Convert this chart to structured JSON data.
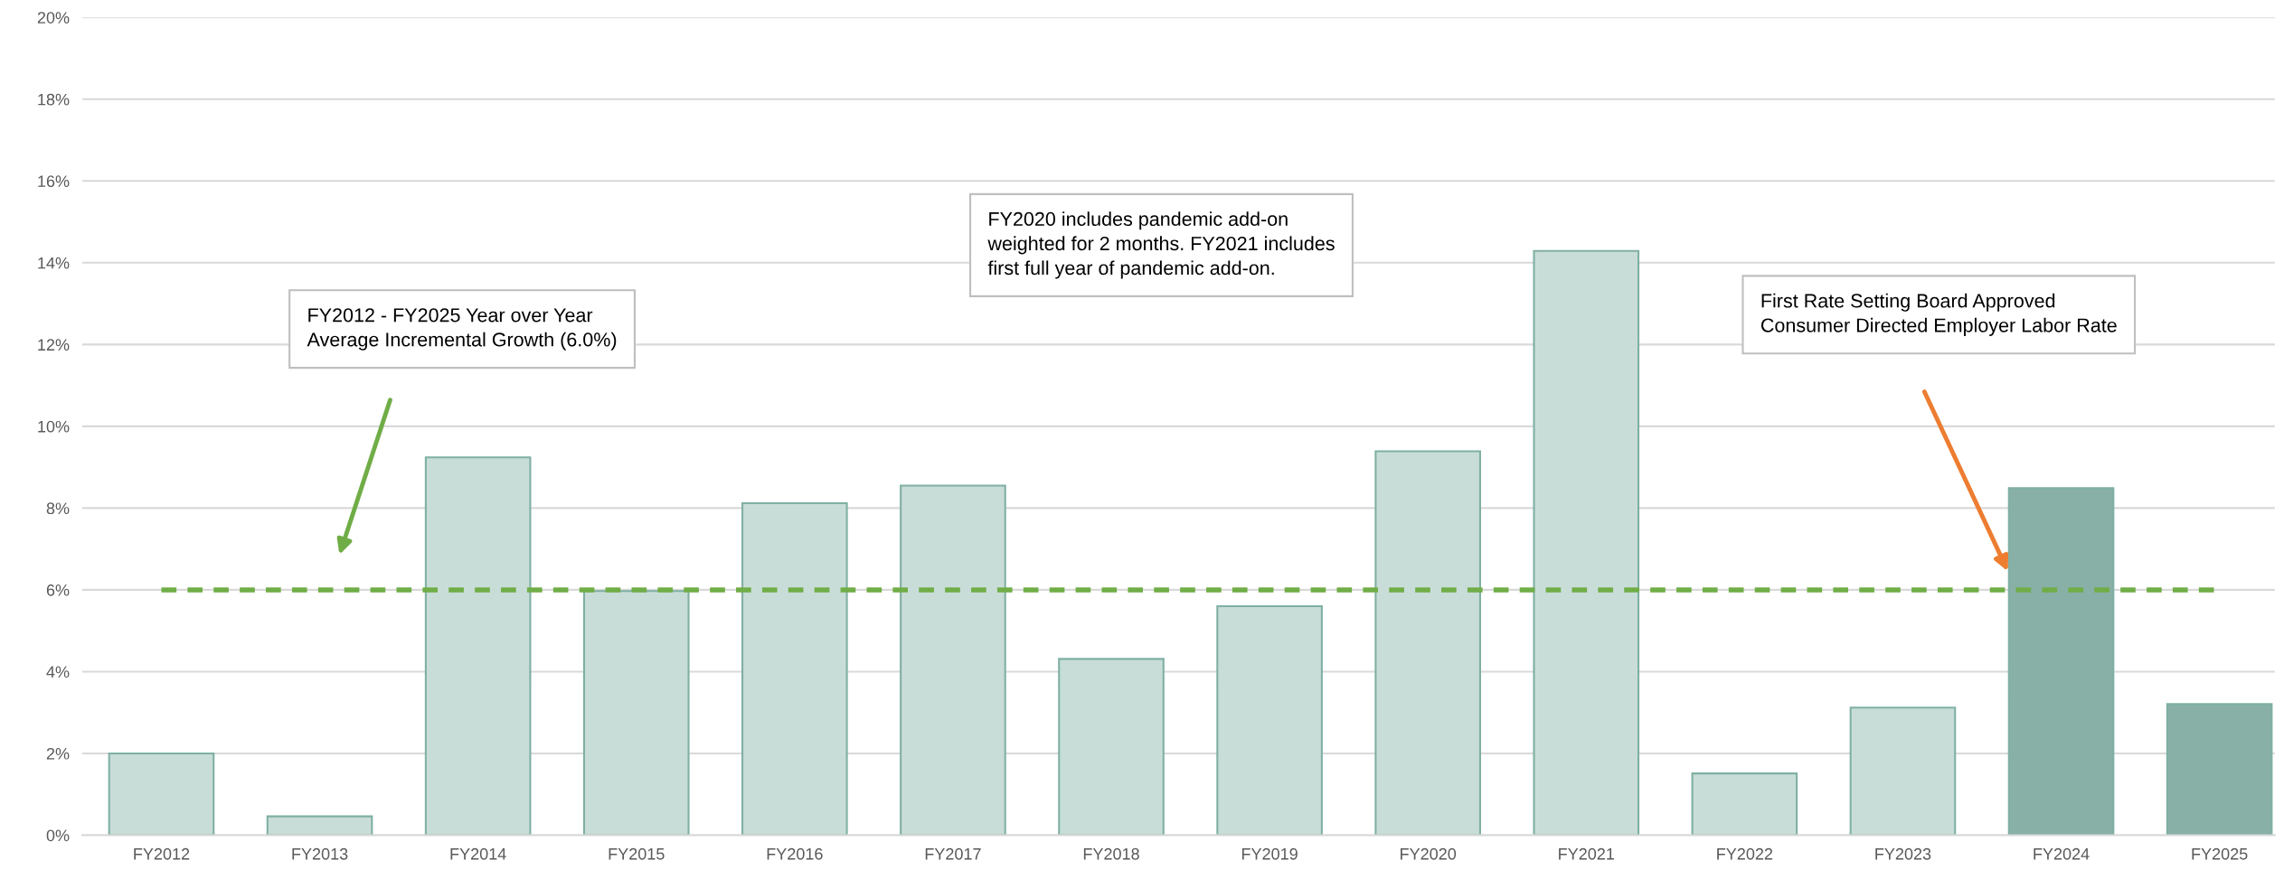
{
  "chart_data": {
    "type": "bar",
    "categories": [
      "FY2012",
      "FY2013",
      "FY2014",
      "FY2015",
      "FY2016",
      "FY2017",
      "FY2018",
      "FY2019",
      "FY2020",
      "FY2021",
      "FY2022",
      "FY2023",
      "FY2024",
      "FY2025"
    ],
    "values": [
      2.0,
      0.46,
      9.24,
      5.97,
      8.12,
      8.55,
      4.31,
      5.6,
      9.39,
      14.29,
      1.51,
      3.12,
      8.49,
      3.21
    ],
    "colors": [
      "#c9ddd8",
      "#c9ddd8",
      "#c9ddd8",
      "#c9ddd8",
      "#c9ddd8",
      "#c9ddd8",
      "#c9ddd8",
      "#c9ddd8",
      "#c9ddd8",
      "#c9ddd8",
      "#c9ddd8",
      "#c9ddd8",
      "#88b0a6",
      "#88b0a6"
    ],
    "ylim": [
      0,
      20
    ],
    "yticks": [
      {
        "value": 0,
        "label": "0%"
      },
      {
        "value": 2,
        "label": "2%"
      },
      {
        "value": 4,
        "label": "4%"
      },
      {
        "value": 6,
        "label": "6%"
      },
      {
        "value": 8,
        "label": "8%"
      },
      {
        "value": 10,
        "label": "10%"
      },
      {
        "value": 12,
        "label": "12%"
      },
      {
        "value": 14,
        "label": "14%"
      },
      {
        "value": 16,
        "label": "16%"
      },
      {
        "value": 18,
        "label": "18%"
      },
      {
        "value": 20,
        "label": "20%"
      }
    ],
    "grid": "y",
    "ref_lines": [
      {
        "axis": "y",
        "value": 6.0,
        "color": "#70ad47",
        "line_style": "dashed"
      }
    ],
    "annotations": [
      "FY2012 - FY2025 Year over Year\nAverage Incremental Growth (6.0%)",
      "FY2020 includes pandemic add-on\nweighted for 2 months. FY2021 includes\nfirst full year of pandemic add-on.",
      "First Rate Setting Board Approved\nConsumer Directed Employer Labor Rate"
    ]
  }
}
